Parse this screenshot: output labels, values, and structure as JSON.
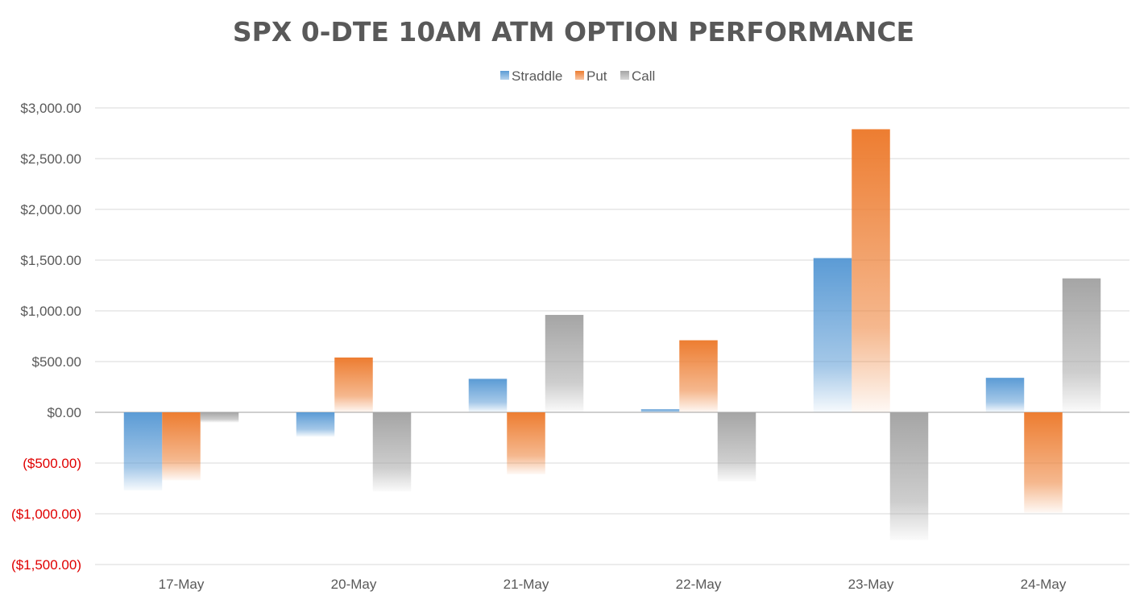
{
  "chart_data": {
    "type": "bar",
    "title": "SPX 0-DTE 10AM ATM OPTION PERFORMANCE",
    "xlabel": "",
    "ylabel": "",
    "categories": [
      "17-May",
      "20-May",
      "21-May",
      "22-May",
      "23-May",
      "24-May"
    ],
    "series": [
      {
        "name": "Straddle",
        "color": "#5b9bd5",
        "values": [
          -770,
          -240,
          330,
          30,
          1520,
          340
        ]
      },
      {
        "name": "Put",
        "color": "#ed7d31",
        "values": [
          -670,
          540,
          -610,
          710,
          2790,
          -990
        ]
      },
      {
        "name": "Call",
        "color": "#a5a5a5",
        "values": [
          -100,
          -780,
          960,
          -680,
          -1260,
          1320
        ]
      }
    ],
    "ylim": [
      -1500,
      3000
    ],
    "yticks": [
      -1500,
      -1000,
      -500,
      0,
      500,
      1000,
      1500,
      2000,
      2500,
      3000
    ],
    "ytick_labels": [
      "($1,500.00)",
      "($1,000.00)",
      "($500.00)",
      "$0.00",
      "$500.00",
      "$1,000.00",
      "$1,500.00",
      "$2,000.00",
      "$2,500.00",
      "$3,000.00"
    ],
    "negative_label_color": "#e00000",
    "grid": true,
    "legend_position": "top-center"
  }
}
